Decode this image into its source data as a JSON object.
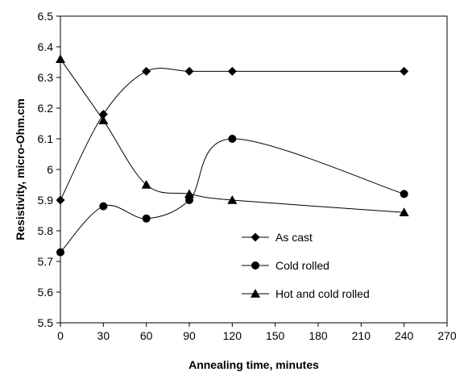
{
  "chart_data": {
    "type": "line",
    "xlabel": "Annealing time, minutes",
    "ylabel": "Resistivity, micro-Ohm.cm",
    "xlim": [
      0,
      270
    ],
    "ylim": [
      5.5,
      6.5
    ],
    "xticks": [
      "0",
      "30",
      "60",
      "90",
      "120",
      "150",
      "180",
      "210",
      "240",
      "270"
    ],
    "yticks": [
      "5.5",
      "5.6",
      "5.7",
      "5.8",
      "5.9",
      "6",
      "6.1",
      "6.2",
      "6.3",
      "6.4",
      "6.5"
    ],
    "grid": false,
    "smooth": true,
    "legend_position": "bottom-right-inside",
    "series": [
      {
        "name": "As cast",
        "marker": "diamond",
        "x": [
          0,
          30,
          60,
          90,
          120,
          240
        ],
        "y": [
          5.9,
          6.18,
          6.32,
          6.32,
          6.32,
          6.32
        ]
      },
      {
        "name": "Cold rolled",
        "marker": "circle",
        "x": [
          0,
          30,
          60,
          90,
          120,
          240
        ],
        "y": [
          5.73,
          5.88,
          5.84,
          5.9,
          6.1,
          5.92
        ]
      },
      {
        "name": "Hot and cold rolled",
        "marker": "triangle",
        "x": [
          0,
          30,
          60,
          90,
          120,
          240
        ],
        "y": [
          6.36,
          6.16,
          5.95,
          5.92,
          5.9,
          5.86
        ]
      }
    ]
  }
}
